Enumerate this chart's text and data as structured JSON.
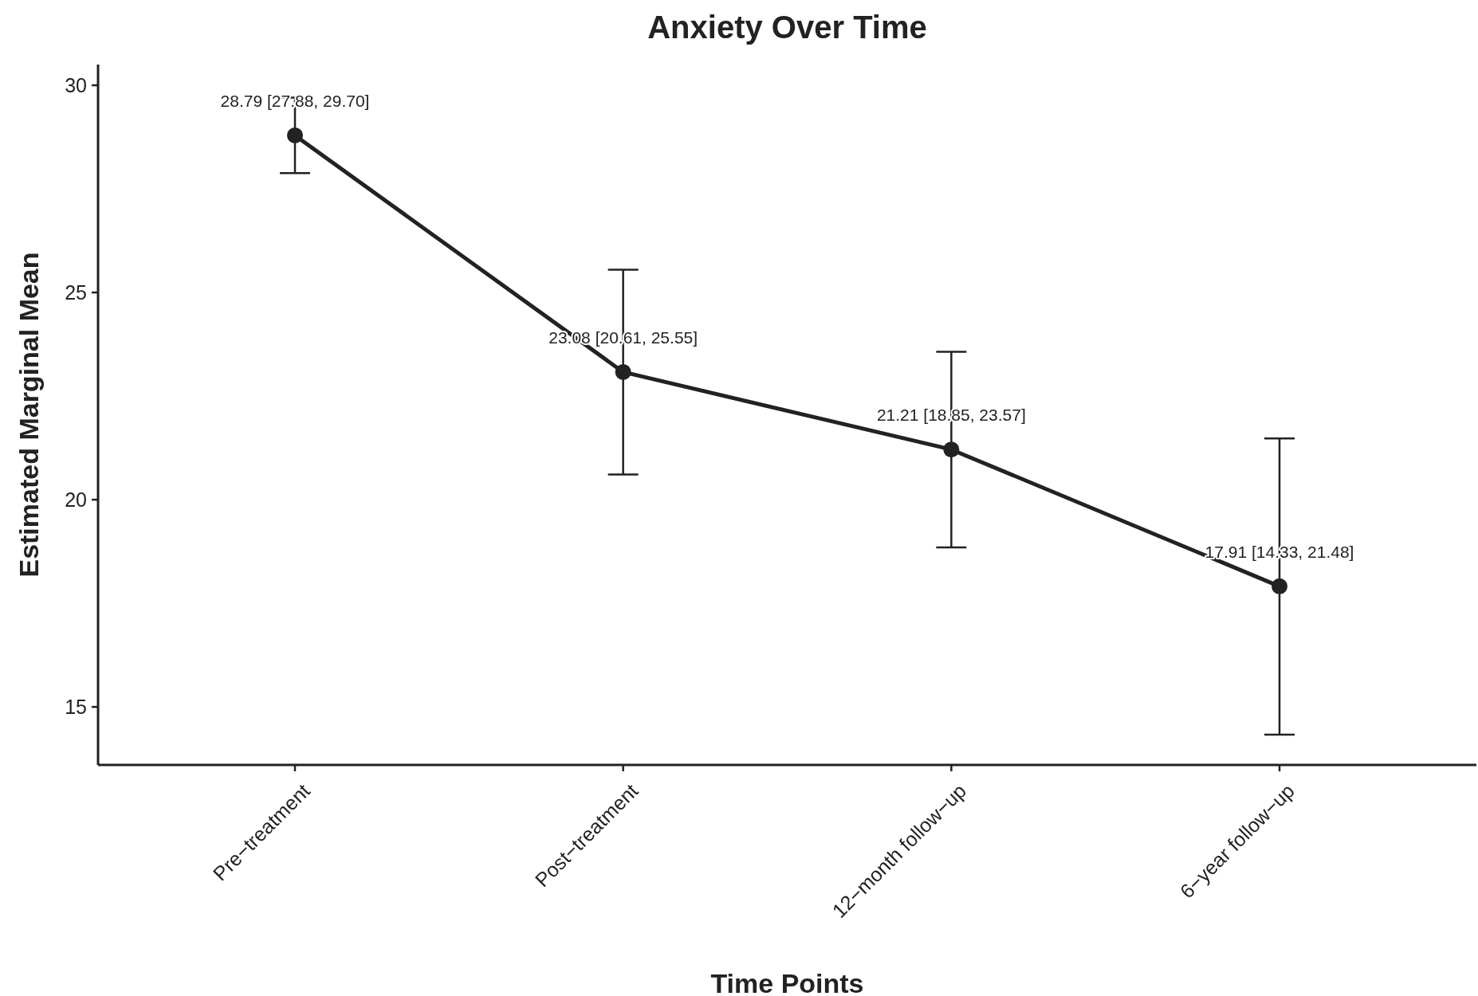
{
  "chart_data": {
    "type": "line",
    "title": "Anxiety Over Time",
    "xlabel": "Time Points",
    "ylabel": "Estimated Marginal Mean",
    "categories": [
      "Pre−treatment",
      "Post−treatment",
      "12−month follow−up",
      "6−year follow−up"
    ],
    "series": [
      {
        "color": "#222222",
        "values": [
          28.79,
          23.08,
          21.21,
          17.91
        ],
        "errors": [
          [
            27.88,
            29.7
          ],
          [
            20.61,
            25.55
          ],
          [
            18.85,
            23.57
          ],
          [
            14.33,
            21.48
          ]
        ],
        "value_labels": [
          "28.79 [27.88, 29.70]",
          "23.08 [20.61, 25.55]",
          "21.21 [18.85, 23.57]",
          "17.91 [14.33, 21.48]"
        ]
      }
    ],
    "ylim": [
      13.6,
      30.5
    ],
    "yticks": [
      15,
      20,
      25,
      30
    ],
    "grid": false,
    "marker": "circle",
    "line_style": "solid"
  }
}
